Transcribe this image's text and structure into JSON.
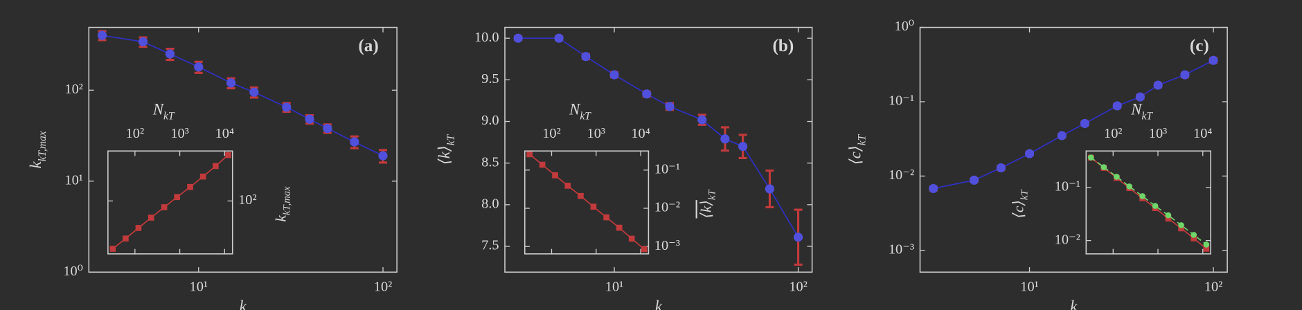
{
  "chart_data": [
    {
      "type": "line",
      "panel_label": "(a)",
      "xlabel": "k",
      "ylabel": {
        "text": "k",
        "sub": "kT,max"
      },
      "xlog": true,
      "ylog": true,
      "x": [
        3,
        5,
        7,
        10,
        15,
        20,
        30,
        40,
        50,
        70,
        100
      ],
      "xlim": [
        2.54,
        119
      ],
      "ylim": [
        1,
        490
      ],
      "xticks": [
        {
          "value": 10,
          "label": "10¹"
        },
        {
          "value": 100,
          "label": "10²"
        }
      ],
      "yticks": [
        {
          "value": 1,
          "label": "10⁰"
        },
        {
          "value": 10,
          "label": "10¹"
        },
        {
          "value": 100,
          "label": "10²"
        }
      ],
      "series": [
        {
          "color": "#3030c8",
          "marker_color": "#5050dc",
          "error_color": "#c23a3c",
          "values": [
            400,
            340,
            250,
            180,
            120,
            95,
            65,
            48,
            38,
            27,
            19
          ],
          "errors": [
            45,
            40,
            35,
            25,
            15,
            12,
            7,
            5,
            4,
            4,
            3
          ]
        }
      ],
      "inset": {
        "type": "line",
        "xlabel": {
          "text": "N",
          "sub": "kT"
        },
        "ylabel": {
          "text": "k",
          "sub": "kT,max"
        },
        "xlog": true,
        "ylog": true,
        "x": [
          32,
          62,
          120,
          230,
          450,
          870,
          1700,
          3300,
          6300,
          12000
        ],
        "xlim": [
          25,
          15000
        ],
        "ylim": [
          15,
          600
        ],
        "xticks": [
          {
            "value": 100,
            "label": "10²"
          },
          {
            "value": 1000,
            "label": "10³"
          },
          {
            "value": 10000,
            "label": "10⁴"
          }
        ],
        "yticks": [
          {
            "value": 100,
            "label": "10²"
          }
        ],
        "series": [
          {
            "color": "#c23a3c",
            "marker": "square",
            "values": [
              18,
              26,
              38,
              55,
              80,
              115,
              165,
              240,
              350,
              520
            ]
          }
        ]
      }
    },
    {
      "type": "line",
      "panel_label": "(b)",
      "xlabel": "k",
      "ylabel": {
        "text": "⟨k⟩",
        "sub": "kT"
      },
      "xlog": true,
      "ylog": false,
      "x": [
        3,
        5,
        7,
        10,
        15,
        20,
        30,
        40,
        50,
        70,
        100
      ],
      "xlim": [
        2.54,
        119
      ],
      "ylim": [
        7.19,
        10.13
      ],
      "xticks": [
        {
          "value": 10,
          "label": "10¹"
        },
        {
          "value": 100,
          "label": "10²"
        }
      ],
      "yticks": [
        7.5,
        {
          "value": 8,
          "label": "8.0"
        },
        8.5,
        {
          "value": 9,
          "label": "9.0"
        },
        9.5,
        {
          "value": 10,
          "label": "10.0"
        }
      ],
      "series": [
        {
          "color": "#3030c8",
          "marker_color": "#5050dc",
          "error_color": "#c23a3c",
          "values": [
            10.0,
            10.0,
            9.78,
            9.56,
            9.33,
            9.18,
            9.02,
            8.79,
            8.7,
            8.19,
            7.61
          ],
          "errors": [
            0.02,
            0.02,
            0.03,
            0.03,
            0.03,
            0.04,
            0.06,
            0.14,
            0.14,
            0.22,
            0.33
          ]
        }
      ],
      "inset": {
        "type": "line",
        "xlabel": {
          "text": "N",
          "sub": "kT"
        },
        "ylabel": {
          "text": "⟨k⟩",
          "sub": "kT",
          "overline": true
        },
        "xlog": true,
        "ylog": true,
        "x": [
          32,
          62,
          120,
          230,
          450,
          870,
          1700,
          3300,
          6300,
          12000
        ],
        "xlim": [
          25,
          15000
        ],
        "ylim": [
          0.00064,
          0.316
        ],
        "xticks": [
          {
            "value": 100,
            "label": "10²"
          },
          {
            "value": 1000,
            "label": "10³"
          },
          {
            "value": 10000,
            "label": "10⁴"
          }
        ],
        "yticks": [
          {
            "value": 0.1,
            "label": "10⁻¹"
          },
          {
            "value": 0.01,
            "label": "10⁻²"
          },
          {
            "value": 0.001,
            "label": "10⁻³"
          }
        ],
        "series": [
          {
            "color": "#c23a3c",
            "marker": "square",
            "values": [
              0.26,
              0.138,
              0.073,
              0.039,
              0.021,
              0.011,
              0.0058,
              0.0031,
              0.0016,
              0.00085
            ]
          }
        ]
      }
    },
    {
      "type": "line",
      "panel_label": "(c)",
      "xlabel": "k",
      "ylabel": {
        "text": "⟨c⟩",
        "sub": "kT"
      },
      "xlog": true,
      "ylog": true,
      "x": [
        3,
        5,
        7,
        10,
        15,
        20,
        30,
        40,
        50,
        70,
        100
      ],
      "xlim": [
        2.54,
        119
      ],
      "ylim": [
        0.00051,
        1
      ],
      "xticks": [
        {
          "value": 10,
          "label": "10¹"
        },
        {
          "value": 100,
          "label": "10²"
        }
      ],
      "yticks": [
        {
          "value": 0.001,
          "label": "10⁻³"
        },
        {
          "value": 0.01,
          "label": "10⁻²"
        },
        {
          "value": 0.1,
          "label": "10⁻¹"
        },
        {
          "value": 1,
          "label": "10⁰"
        }
      ],
      "series": [
        {
          "color": "#3030c8",
          "marker_color": "#5050dc",
          "error_color": "#c23a3c",
          "values": [
            0.0068,
            0.0088,
            0.0129,
            0.02,
            0.035,
            0.051,
            0.088,
            0.116,
            0.167,
            0.23,
            0.36
          ],
          "errors": [
            0.0004,
            0.0005,
            0.0008,
            0.001,
            0.002,
            0.003,
            0.005,
            0.007,
            0.01,
            0.015,
            0.025
          ]
        }
      ],
      "inset": {
        "type": "line",
        "xlabel": {
          "text": "N",
          "sub": "kT"
        },
        "ylabel": {
          "text": "⟨c⟩",
          "sub": "kT"
        },
        "xlog": true,
        "ylog": true,
        "x": [
          32,
          62,
          120,
          230,
          450,
          870,
          1700,
          3300,
          6300,
          12000
        ],
        "xlim": [
          25,
          15000
        ],
        "ylim": [
          0.0056,
          0.49
        ],
        "xticks": [
          {
            "value": 100,
            "label": "10²"
          },
          {
            "value": 1000,
            "label": "10³"
          },
          {
            "value": 10000,
            "label": "10⁴"
          }
        ],
        "yticks": [
          {
            "value": 0.1,
            "label": "10⁻¹"
          },
          {
            "value": 0.01,
            "label": "10⁻²"
          }
        ],
        "series": [
          {
            "color": "#c23a3c",
            "marker": "square",
            "values": [
              0.367,
              0.236,
              0.152,
              0.098,
              0.063,
              0.041,
              0.026,
              0.017,
              0.011,
              0.007
            ]
          },
          {
            "color": "#6fd66a",
            "marker": "circle",
            "dashed": true,
            "values": [
              0.37,
              0.243,
              0.16,
              0.105,
              0.069,
              0.045,
              0.03,
              0.0195,
              0.0128,
              0.0084
            ]
          }
        ]
      }
    }
  ]
}
